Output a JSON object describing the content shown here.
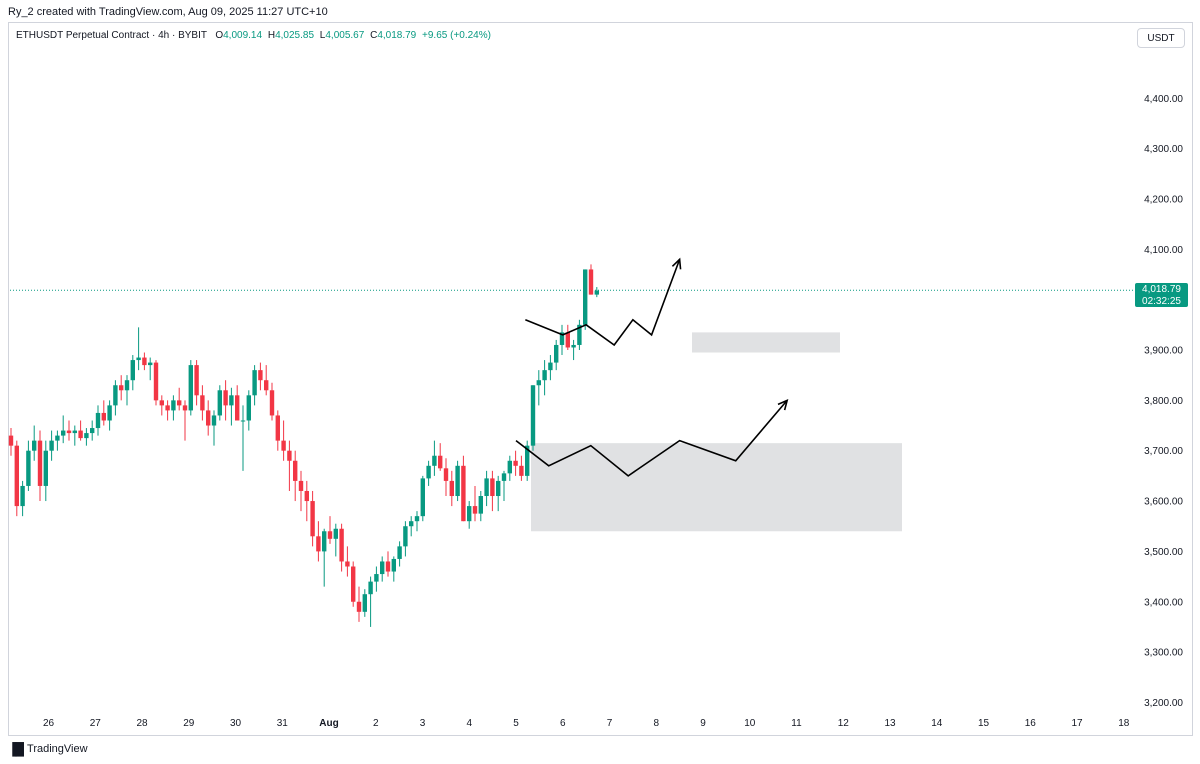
{
  "header": {
    "credit": "Ry_2 created with TradingView.com, Aug 09, 2025 11:27 UTC+10"
  },
  "legend": {
    "symbol": "ETHUSDT Perpetual Contract · 4h · BYBIT",
    "open_label": "O",
    "open": "4,009.14",
    "high_label": "H",
    "high": "4,025.85",
    "low_label": "L",
    "low": "4,005.67",
    "close_label": "C",
    "close": "4,018.79",
    "change": "+9.65 (+0.24%)"
  },
  "currency": "USDT",
  "price_tag": {
    "price": "4,018.79",
    "countdown": "02:32:25"
  },
  "footer": {
    "brand": "TradingView"
  },
  "colors": {
    "up": "#089981",
    "down": "#f23645",
    "zone": "#e0e1e3",
    "last_price_line": "#089981"
  },
  "chart_data": {
    "type": "candlestick",
    "symbol": "ETHUSDT Perpetual Contract",
    "interval": "4h",
    "exchange": "BYBIT",
    "ylim": [
      3170,
      4510
    ],
    "y_ticks": [
      3200,
      3300,
      3400,
      3500,
      3600,
      3700,
      3800,
      3900,
      4000,
      4100,
      4200,
      4300,
      4400
    ],
    "y_tick_labels": [
      "3,200.00",
      "3,300.00",
      "3,400.00",
      "3,500.00",
      "3,600.00",
      "3,700.00",
      "3,800.00",
      "3,900.00",
      "4,000.00",
      "4,100.00",
      "4,200.00",
      "4,300.00",
      "4,400.00"
    ],
    "x_ticks": [
      "26",
      "27",
      "28",
      "29",
      "30",
      "31",
      "Aug",
      "2",
      "3",
      "4",
      "5",
      "6",
      "7",
      "8",
      "9",
      "10",
      "11",
      "12",
      "13",
      "14",
      "15",
      "16",
      "17",
      "18"
    ],
    "last_price": 4018.79,
    "candles": [
      [
        3730,
        3745,
        3690,
        3710
      ],
      [
        3710,
        3720,
        3570,
        3590
      ],
      [
        3590,
        3640,
        3570,
        3630
      ],
      [
        3630,
        3720,
        3620,
        3700
      ],
      [
        3700,
        3750,
        3680,
        3720
      ],
      [
        3720,
        3740,
        3600,
        3630
      ],
      [
        3630,
        3720,
        3600,
        3700
      ],
      [
        3700,
        3740,
        3680,
        3720
      ],
      [
        3720,
        3740,
        3700,
        3730
      ],
      [
        3730,
        3770,
        3715,
        3740
      ],
      [
        3740,
        3760,
        3720,
        3735
      ],
      [
        3735,
        3750,
        3710,
        3740
      ],
      [
        3740,
        3760,
        3720,
        3725
      ],
      [
        3725,
        3745,
        3710,
        3735
      ],
      [
        3735,
        3760,
        3720,
        3745
      ],
      [
        3745,
        3790,
        3730,
        3775
      ],
      [
        3775,
        3800,
        3750,
        3760
      ],
      [
        3760,
        3800,
        3740,
        3790
      ],
      [
        3790,
        3840,
        3770,
        3830
      ],
      [
        3830,
        3850,
        3800,
        3820
      ],
      [
        3820,
        3850,
        3790,
        3840
      ],
      [
        3840,
        3890,
        3820,
        3880
      ],
      [
        3880,
        3945,
        3860,
        3885
      ],
      [
        3885,
        3895,
        3860,
        3870
      ],
      [
        3870,
        3885,
        3840,
        3875
      ],
      [
        3875,
        3880,
        3790,
        3800
      ],
      [
        3800,
        3810,
        3770,
        3790
      ],
      [
        3790,
        3800,
        3760,
        3780
      ],
      [
        3780,
        3810,
        3760,
        3800
      ],
      [
        3800,
        3825,
        3780,
        3790
      ],
      [
        3790,
        3800,
        3720,
        3780
      ],
      [
        3780,
        3880,
        3770,
        3870
      ],
      [
        3870,
        3880,
        3790,
        3810
      ],
      [
        3810,
        3830,
        3760,
        3780
      ],
      [
        3780,
        3800,
        3730,
        3750
      ],
      [
        3750,
        3780,
        3710,
        3770
      ],
      [
        3770,
        3830,
        3760,
        3820
      ],
      [
        3820,
        3840,
        3760,
        3790
      ],
      [
        3790,
        3825,
        3750,
        3810
      ],
      [
        3810,
        3830,
        3760,
        3760
      ],
      [
        3760,
        3790,
        3660,
        3760
      ],
      [
        3760,
        3820,
        3740,
        3810
      ],
      [
        3810,
        3870,
        3790,
        3860
      ],
      [
        3860,
        3875,
        3820,
        3840
      ],
      [
        3840,
        3870,
        3810,
        3820
      ],
      [
        3820,
        3835,
        3760,
        3770
      ],
      [
        3770,
        3780,
        3700,
        3720
      ],
      [
        3720,
        3760,
        3680,
        3700
      ],
      [
        3700,
        3720,
        3620,
        3680
      ],
      [
        3680,
        3700,
        3600,
        3640
      ],
      [
        3640,
        3660,
        3580,
        3620
      ],
      [
        3620,
        3640,
        3560,
        3600
      ],
      [
        3600,
        3620,
        3510,
        3530
      ],
      [
        3530,
        3560,
        3480,
        3500
      ],
      [
        3500,
        3545,
        3430,
        3540
      ],
      [
        3540,
        3570,
        3515,
        3525
      ],
      [
        3525,
        3555,
        3490,
        3545
      ],
      [
        3545,
        3555,
        3460,
        3480
      ],
      [
        3480,
        3510,
        3450,
        3470
      ],
      [
        3470,
        3480,
        3390,
        3400
      ],
      [
        3400,
        3430,
        3360,
        3380
      ],
      [
        3380,
        3425,
        3370,
        3415
      ],
      [
        3415,
        3450,
        3350,
        3440
      ],
      [
        3440,
        3470,
        3420,
        3455
      ],
      [
        3455,
        3490,
        3440,
        3480
      ],
      [
        3480,
        3500,
        3450,
        3460
      ],
      [
        3460,
        3490,
        3440,
        3485
      ],
      [
        3485,
        3520,
        3470,
        3510
      ],
      [
        3510,
        3560,
        3490,
        3550
      ],
      [
        3550,
        3570,
        3530,
        3560
      ],
      [
        3560,
        3580,
        3540,
        3570
      ],
      [
        3570,
        3650,
        3560,
        3645
      ],
      [
        3645,
        3680,
        3630,
        3670
      ],
      [
        3670,
        3720,
        3650,
        3690
      ],
      [
        3690,
        3715,
        3660,
        3665
      ],
      [
        3665,
        3685,
        3610,
        3640
      ],
      [
        3640,
        3660,
        3590,
        3610
      ],
      [
        3610,
        3680,
        3600,
        3670
      ],
      [
        3670,
        3690,
        3560,
        3560
      ],
      [
        3560,
        3600,
        3545,
        3590
      ],
      [
        3590,
        3630,
        3560,
        3575
      ],
      [
        3575,
        3620,
        3560,
        3610
      ],
      [
        3610,
        3660,
        3590,
        3645
      ],
      [
        3645,
        3660,
        3580,
        3610
      ],
      [
        3610,
        3650,
        3580,
        3640
      ],
      [
        3640,
        3660,
        3600,
        3655
      ],
      [
        3655,
        3690,
        3640,
        3680
      ],
      [
        3680,
        3700,
        3650,
        3670
      ],
      [
        3670,
        3690,
        3640,
        3650
      ],
      [
        3650,
        3720,
        3640,
        3710
      ],
      [
        3710,
        3830,
        3700,
        3830
      ],
      [
        3830,
        3860,
        3790,
        3840
      ],
      [
        3840,
        3880,
        3810,
        3860
      ],
      [
        3860,
        3890,
        3840,
        3875
      ],
      [
        3875,
        3920,
        3860,
        3910
      ],
      [
        3910,
        3950,
        3890,
        3935
      ],
      [
        3935,
        3950,
        3900,
        3905
      ],
      [
        3905,
        3920,
        3880,
        3910
      ],
      [
        3910,
        3960,
        3900,
        3950
      ],
      [
        3950,
        4060,
        3940,
        4060
      ],
      [
        4060,
        4070,
        4010,
        4010
      ],
      [
        4010,
        4025,
        4005,
        4018
      ]
    ],
    "zones": [
      {
        "x_from": "Aug 5",
        "x_to": "Aug 13",
        "y_from": 3540,
        "y_to": 3715
      },
      {
        "x_from": "Aug 8",
        "x_to": "Aug 12",
        "y_from": 3895,
        "y_to": 3935
      }
    ],
    "projections": [
      {
        "points": [
          [
            10.0,
            3720
          ],
          [
            10.7,
            3670
          ],
          [
            11.6,
            3710
          ],
          [
            12.4,
            3650
          ],
          [
            13.5,
            3720
          ],
          [
            14.7,
            3680
          ],
          [
            15.8,
            3800
          ]
        ]
      },
      {
        "points": [
          [
            10.2,
            3960
          ],
          [
            11.0,
            3930
          ],
          [
            11.5,
            3950
          ],
          [
            12.1,
            3910
          ],
          [
            12.5,
            3960
          ],
          [
            12.9,
            3930
          ],
          [
            13.5,
            4080
          ]
        ]
      }
    ]
  }
}
